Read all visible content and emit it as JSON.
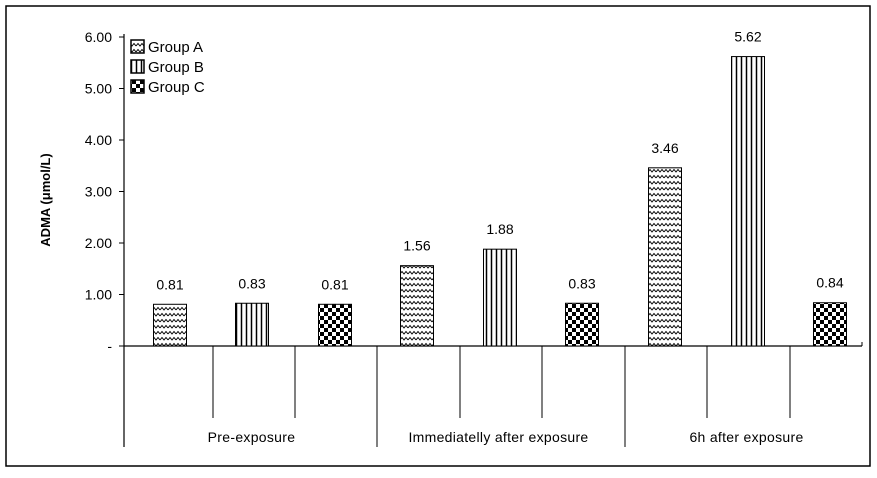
{
  "chart_data": {
    "type": "bar",
    "title": "",
    "xlabel": "",
    "ylabel": "ADMA (μmol/L)",
    "ylim": [
      0,
      6
    ],
    "yticks": [
      0,
      1,
      2,
      3,
      4,
      5,
      6
    ],
    "ytick_labels": [
      "-",
      "1.00",
      "2.00",
      "3.00",
      "4.00",
      "5.00",
      "6.00"
    ],
    "categories": [
      "Pre-exposure",
      "Immediatelly after exposure",
      "6h after exposure"
    ],
    "series": [
      {
        "name": "Group A",
        "pattern": "zigzag",
        "values": [
          0.81,
          1.56,
          3.46
        ],
        "labels": [
          "0.81",
          "1.56",
          "3.46"
        ]
      },
      {
        "name": "Group B",
        "pattern": "vertical-stripes",
        "values": [
          0.83,
          1.88,
          5.62
        ],
        "labels": [
          "0.83",
          "1.88",
          "5.62"
        ]
      },
      {
        "name": "Group C",
        "pattern": "checkerboard",
        "values": [
          0.81,
          0.83,
          0.84
        ],
        "labels": [
          "0.81",
          "0.83",
          "0.84"
        ]
      }
    ],
    "legend_position": "top-left",
    "grid": false,
    "colors": {
      "stroke": "#000000",
      "background": "#ffffff"
    }
  }
}
